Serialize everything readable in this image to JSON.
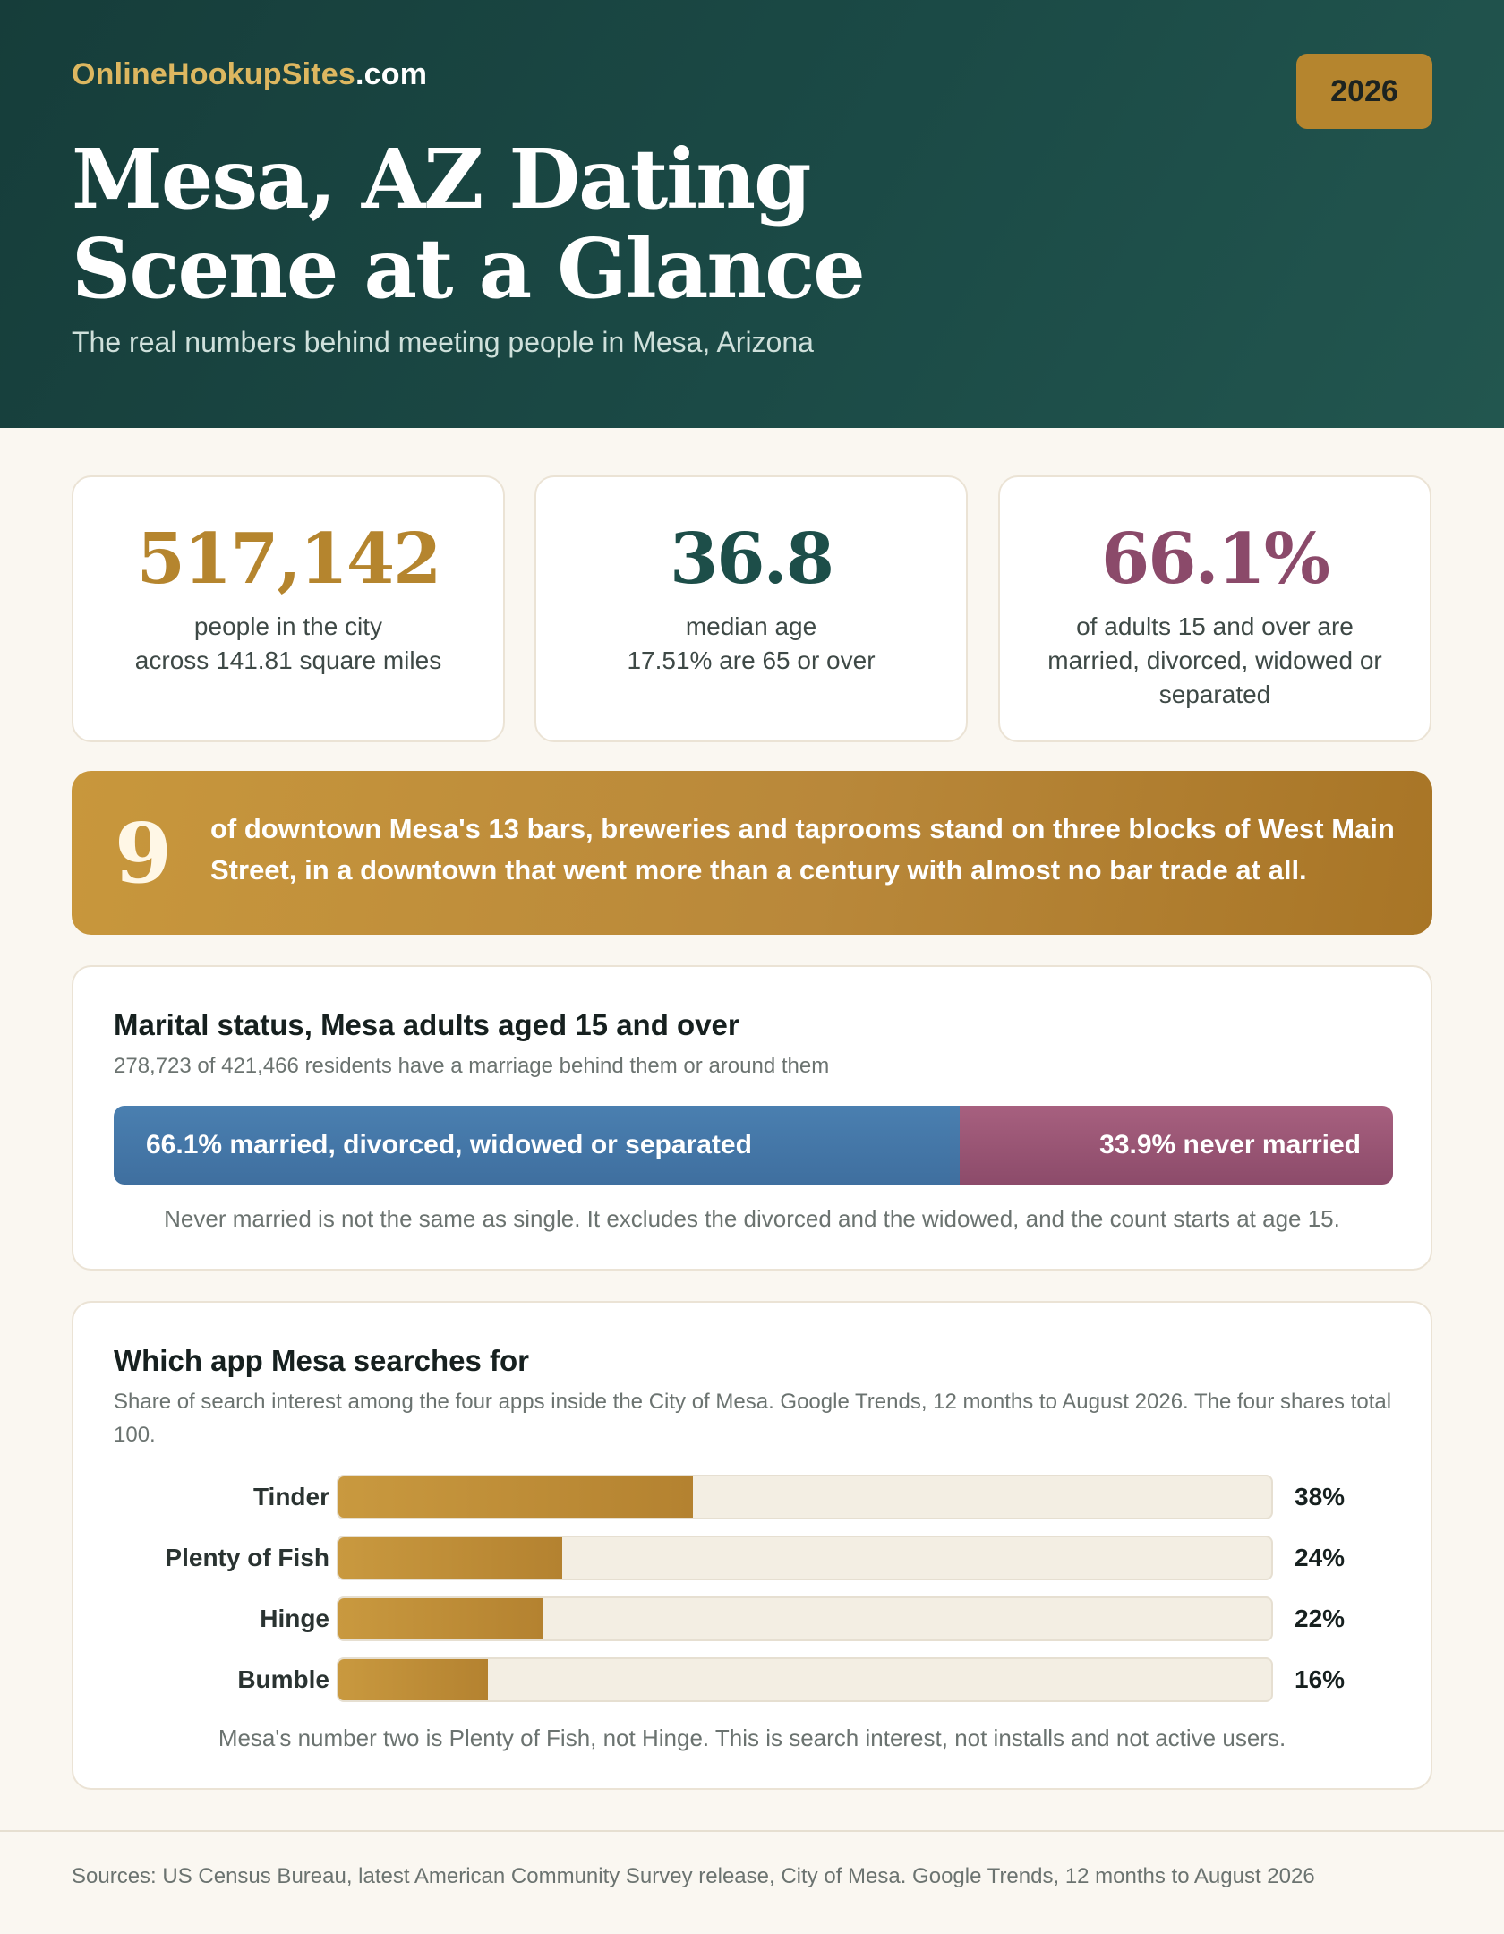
{
  "header": {
    "brand_main": "OnlineHookupSites",
    "brand_tld": ".com",
    "year": "2026",
    "title": "Mesa, AZ Dating Scene at a Glance",
    "subtitle": "The real numbers behind meeting people in Mesa, Arizona"
  },
  "stats": [
    {
      "value": "517,142",
      "line1": "people in the city",
      "line2": "across 141.81 square miles",
      "color": "#b5852e"
    },
    {
      "value": "36.8",
      "line1": "median age",
      "line2": "17.51% are 65 or over",
      "color": "#1d4e49"
    },
    {
      "value": "66.1%",
      "line1": "of adults 15 and over are married, divorced, widowed or separated",
      "color": "#8b4a6a"
    }
  ],
  "callout": {
    "number": "9",
    "text": "of downtown Mesa's 13 bars, breweries and taprooms stand on three blocks of West Main Street, in a downtown that went more than a century with almost no bar trade at all."
  },
  "marital": {
    "title": "Marital status, Mesa adults aged 15 and over",
    "subtitle": "278,723 of 421,466 residents have a marriage behind them or around them",
    "married_share": 66.1,
    "married_label": "66.1% married, divorced, widowed or separated",
    "never_share": 33.9,
    "never_label": "33.9% never married",
    "note": "Never married is not the same as single. It excludes the divorced and the widowed, and the count starts at age 15.",
    "colors": {
      "married": "#4a7fb0",
      "never": "#8c4b6a"
    }
  },
  "apps": {
    "title": "Which app Mesa searches for",
    "subtitle": "Share of search interest among the four apps inside the City of Mesa. Google Trends, 12 months to August 2026. The four shares total 100.",
    "note": "Mesa's number two is Plenty of Fish, not Hinge. This is search interest, not installs and not active users."
  },
  "chart_data": {
    "type": "bar",
    "orientation": "horizontal",
    "categories": [
      "Tinder",
      "Plenty of Fish",
      "Hinge",
      "Bumble"
    ],
    "values": [
      38,
      24,
      22,
      16
    ],
    "value_labels": [
      "38%",
      "24%",
      "22%",
      "16%"
    ],
    "xlim": [
      0,
      100
    ],
    "color": "#b9883a"
  },
  "footer": {
    "sources": "Sources: US Census Bureau, latest American Community Survey release, City of Mesa. Google Trends, 12 months to August 2026"
  }
}
